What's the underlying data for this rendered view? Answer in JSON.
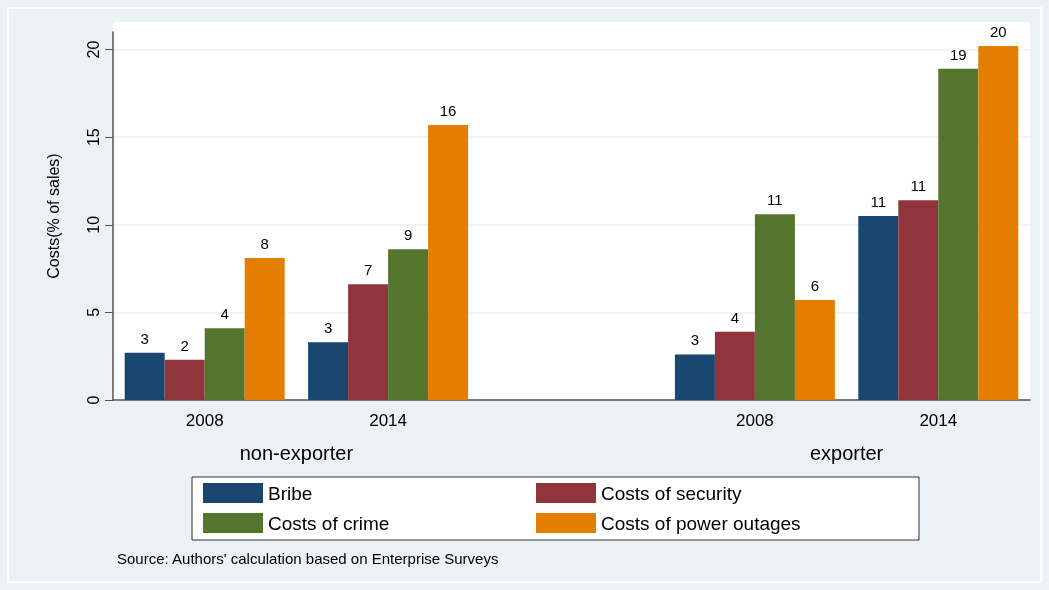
{
  "chart_data": {
    "type": "bar",
    "ylabel": "Costs(% of sales)",
    "categories": [
      "2008",
      "2014",
      null,
      "2008",
      "2014"
    ],
    "series": [
      {
        "name": "Bribe",
        "color": "#1a476f",
        "values": [
          2.7,
          3.3,
          null,
          2.6,
          10.5
        ],
        "value_labels": [
          "3",
          "3",
          null,
          "3",
          "11"
        ]
      },
      {
        "name": "Costs of security",
        "color": "#90353b",
        "values": [
          2.3,
          6.6,
          null,
          3.9,
          11.4
        ],
        "value_labels": [
          "2",
          "7",
          null,
          "4",
          "11"
        ]
      },
      {
        "name": "Costs of crime",
        "color": "#55752f",
        "values": [
          4.1,
          8.6,
          null,
          10.6,
          18.9
        ],
        "value_labels": [
          "4",
          "9",
          null,
          "11",
          "19"
        ]
      },
      {
        "name": "Costs of power outages",
        "color": "#e37e00",
        "values": [
          8.1,
          15.7,
          null,
          5.7,
          20.2
        ],
        "value_labels": [
          "8",
          "16",
          null,
          "6",
          "20"
        ]
      }
    ],
    "ylim": [
      0,
      21
    ],
    "yticks": [
      0,
      5,
      10,
      15,
      20
    ],
    "grid": "y",
    "legend": "bottom",
    "annotations": [
      "non-exporter",
      "exporter",
      "Source: Authors' calculation based on Enterprise Surveys"
    ]
  }
}
